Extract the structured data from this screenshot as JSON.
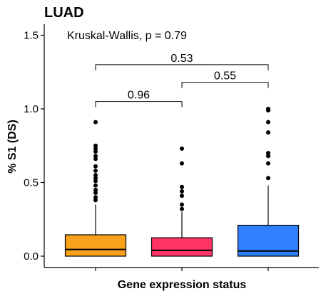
{
  "chart_data": {
    "type": "box",
    "title": "LUAD",
    "xlabel": "Gene expression status",
    "ylabel": "% S1 (DS)",
    "ylim": [
      -0.08,
      1.58
    ],
    "yticks": [
      0.0,
      0.5,
      1.0,
      1.5
    ],
    "ytick_labels": [
      "0.0",
      "0.5",
      "1.0",
      "1.5"
    ],
    "categories": [
      "",
      "",
      ""
    ],
    "colors": [
      "#F9A11B",
      "#FF3366",
      "#2F7FFF"
    ],
    "boxes": [
      {
        "q1": 0.0,
        "median": 0.045,
        "q3": 0.145,
        "whisker_low": 0.0,
        "whisker_high": 0.35,
        "outliers": [
          0.91,
          0.75,
          0.73,
          0.71,
          0.68,
          0.66,
          0.61,
          0.58,
          0.55,
          0.53,
          0.51,
          0.48,
          0.45,
          0.43,
          0.4,
          0.38
        ]
      },
      {
        "q1": 0.0,
        "median": 0.04,
        "q3": 0.125,
        "whisker_low": 0.0,
        "whisker_high": 0.3,
        "outliers": [
          0.73,
          0.63,
          0.47,
          0.44,
          0.41,
          0.35,
          0.32
        ]
      },
      {
        "q1": 0.0,
        "median": 0.035,
        "q3": 0.21,
        "whisker_low": 0.0,
        "whisker_high": 0.48,
        "outliers": [
          1.0,
          0.99,
          0.91,
          0.84,
          0.7,
          0.68,
          0.63,
          0.53
        ]
      }
    ],
    "test_label": "Kruskal-Wallis, p = 0.79",
    "comparisons": [
      {
        "from": 0,
        "to": 2,
        "y": 1.3,
        "label": "0.53"
      },
      {
        "from": 1,
        "to": 2,
        "y": 1.18,
        "label": "0.55"
      },
      {
        "from": 0,
        "to": 1,
        "y": 1.05,
        "label": "0.96"
      }
    ],
    "grid": false
  }
}
